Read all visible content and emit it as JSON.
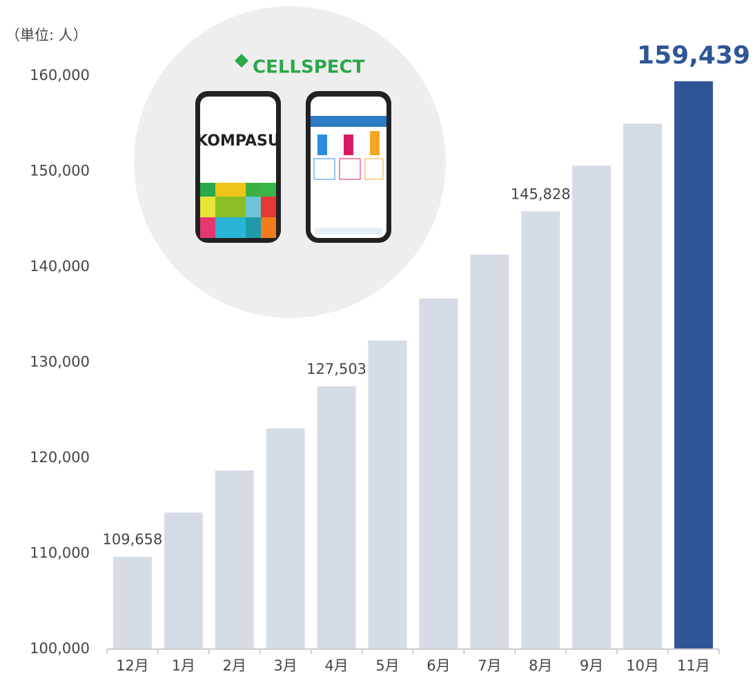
{
  "chart_data": {
    "type": "bar",
    "title": "（単位: 人）",
    "categories": [
      "12月",
      "1月",
      "2月",
      "3月",
      "4月",
      "5月",
      "6月",
      "7月",
      "8月",
      "9月",
      "10月",
      "11月"
    ],
    "values": [
      109658,
      114300,
      118700,
      123100,
      127503,
      132300,
      136700,
      141300,
      145828,
      150600,
      155000,
      159439
    ],
    "value_labels": [
      "109,658",
      null,
      null,
      null,
      "127,503",
      null,
      null,
      null,
      "145,828",
      null,
      null,
      "159,439"
    ],
    "colors": [
      "#d6dce6",
      "#d6dce6",
      "#d6dce6",
      "#d6dce6",
      "#d6dce6",
      "#d6dce6",
      "#d6dce6",
      "#d6dce6",
      "#d6dce6",
      "#d6dce6",
      "#d6dce6",
      "#2f5597"
    ],
    "ylim": [
      100000,
      160000
    ],
    "yticks": [
      {
        "value": 100000,
        "label": "100,000"
      },
      {
        "value": 110000,
        "label": "110,000"
      },
      {
        "value": 120000,
        "label": "120,000"
      },
      {
        "value": 130000,
        "label": "130,000"
      },
      {
        "value": 140000,
        "label": "140,000"
      },
      {
        "value": 150000,
        "label": "150,000"
      },
      {
        "value": 160000,
        "label": "160,000"
      }
    ],
    "grid": false,
    "illustration": {
      "logo": "CELLSPECT",
      "app": "KOMPASU"
    }
  }
}
